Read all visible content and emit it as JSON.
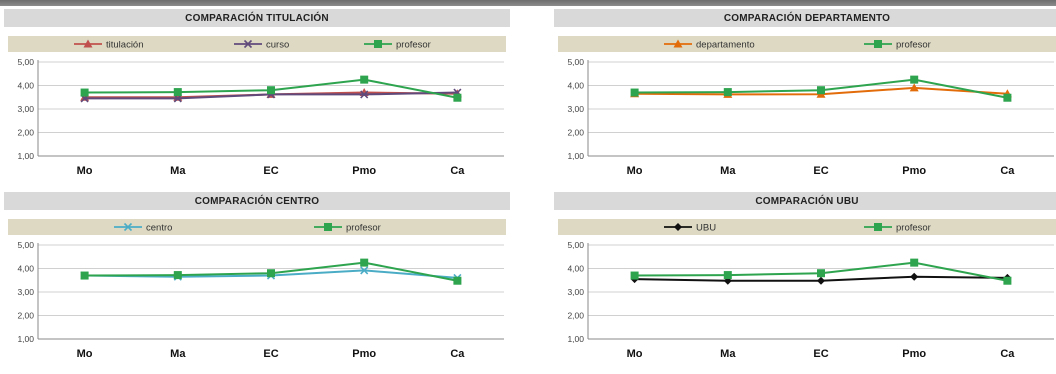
{
  "chart_data": [
    {
      "type": "line",
      "title": "COMPARACIÓN TITULACIÓN",
      "categories": [
        "Mo",
        "Ma",
        "EC",
        "Pmo",
        "Ca"
      ],
      "ylim": [
        1,
        5
      ],
      "yticks": [
        "1,00",
        "2,00",
        "3,00",
        "4,00",
        "5,00"
      ],
      "grid": true,
      "legend_position": "top",
      "series": [
        {
          "name": "titulación",
          "color": "#c0504d",
          "marker": "triangle",
          "values": [
            3.5,
            3.5,
            3.62,
            3.7,
            3.65
          ]
        },
        {
          "name": "curso",
          "color": "#604a7b",
          "marker": "x",
          "values": [
            3.45,
            3.45,
            3.62,
            3.62,
            3.7
          ]
        },
        {
          "name": "profesor",
          "color": "#2ea44f",
          "marker": "square",
          "values": [
            3.7,
            3.72,
            3.8,
            4.25,
            3.48
          ]
        }
      ]
    },
    {
      "type": "line",
      "title": "COMPARACIÓN DEPARTAMENTO",
      "categories": [
        "Mo",
        "Ma",
        "EC",
        "Pmo",
        "Ca"
      ],
      "ylim": [
        1,
        5
      ],
      "yticks": [
        "1,00",
        "2,00",
        "3,00",
        "4,00",
        "5,00"
      ],
      "grid": true,
      "legend_position": "top",
      "series": [
        {
          "name": "departamento",
          "color": "#e36c0a",
          "marker": "triangle",
          "values": [
            3.65,
            3.62,
            3.63,
            3.9,
            3.65
          ]
        },
        {
          "name": "profesor",
          "color": "#2ea44f",
          "marker": "square",
          "values": [
            3.7,
            3.72,
            3.8,
            4.25,
            3.48
          ]
        }
      ]
    },
    {
      "type": "line",
      "title": "COMPARACIÓN CENTRO",
      "categories": [
        "Mo",
        "Ma",
        "EC",
        "Pmo",
        "Ca"
      ],
      "ylim": [
        1,
        5
      ],
      "yticks": [
        "1,00",
        "2,00",
        "3,00",
        "4,00",
        "5,00"
      ],
      "grid": true,
      "legend_position": "top",
      "series": [
        {
          "name": "centro",
          "color": "#4bacc6",
          "marker": "x",
          "values": [
            3.7,
            3.65,
            3.7,
            3.92,
            3.6
          ]
        },
        {
          "name": "profesor",
          "color": "#2ea44f",
          "marker": "square",
          "values": [
            3.7,
            3.72,
            3.8,
            4.25,
            3.48
          ]
        }
      ]
    },
    {
      "type": "line",
      "title": "COMPARACIÓN UBU",
      "categories": [
        "Mo",
        "Ma",
        "EC",
        "Pmo",
        "Ca"
      ],
      "ylim": [
        1,
        5
      ],
      "yticks": [
        "1,00",
        "2,00",
        "3,00",
        "4,00",
        "5,00"
      ],
      "grid": true,
      "legend_position": "top",
      "series": [
        {
          "name": "UBU",
          "color": "#111111",
          "marker": "diamond",
          "values": [
            3.55,
            3.48,
            3.48,
            3.65,
            3.6
          ]
        },
        {
          "name": "profesor",
          "color": "#2ea44f",
          "marker": "square",
          "values": [
            3.7,
            3.72,
            3.8,
            4.25,
            3.48
          ]
        }
      ]
    }
  ]
}
